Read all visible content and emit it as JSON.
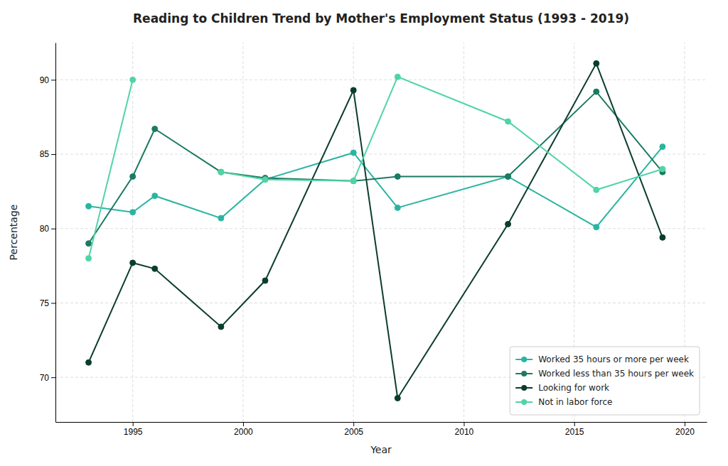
{
  "chart_data": {
    "type": "line",
    "title": "Reading to Children Trend by Mother's Employment Status (1993 - 2019)",
    "xlabel": "Year",
    "ylabel": "Percentage",
    "x": [
      1993,
      1995,
      1996,
      1999,
      2001,
      2005,
      2007,
      2012,
      2016,
      2019
    ],
    "series": [
      {
        "name": "Worked 35 hours or more per week",
        "color": "#2ab5a0",
        "marker": "circle",
        "values": [
          81.5,
          81.1,
          82.2,
          80.7,
          83.3,
          85.1,
          81.4,
          83.5,
          80.1,
          85.5
        ]
      },
      {
        "name": "Worked less than 35 hours per week",
        "color": "#1b7a62",
        "marker": "circle",
        "values": [
          79.0,
          83.5,
          86.7,
          83.8,
          83.4,
          83.2,
          83.5,
          83.5,
          89.2,
          83.8
        ]
      },
      {
        "name": "Looking for work",
        "color": "#0b3d2e",
        "marker": "circle",
        "values": [
          71.0,
          77.7,
          77.3,
          73.4,
          76.5,
          89.3,
          68.6,
          80.3,
          91.1,
          79.4
        ]
      },
      {
        "name": "Not in labor force",
        "color": "#50d4a5",
        "marker": "circle",
        "values": [
          78.0,
          90.0,
          null,
          83.8,
          83.3,
          83.2,
          90.2,
          87.2,
          82.6,
          84.0
        ]
      }
    ],
    "xlim": [
      1991.5,
      2021
    ],
    "xticks": [
      1995,
      2000,
      2005,
      2010,
      2015,
      2020
    ],
    "ylim": [
      67,
      92.5
    ],
    "yticks": [
      70,
      75,
      80,
      85,
      90
    ],
    "grid": true,
    "legend": "lower right"
  }
}
